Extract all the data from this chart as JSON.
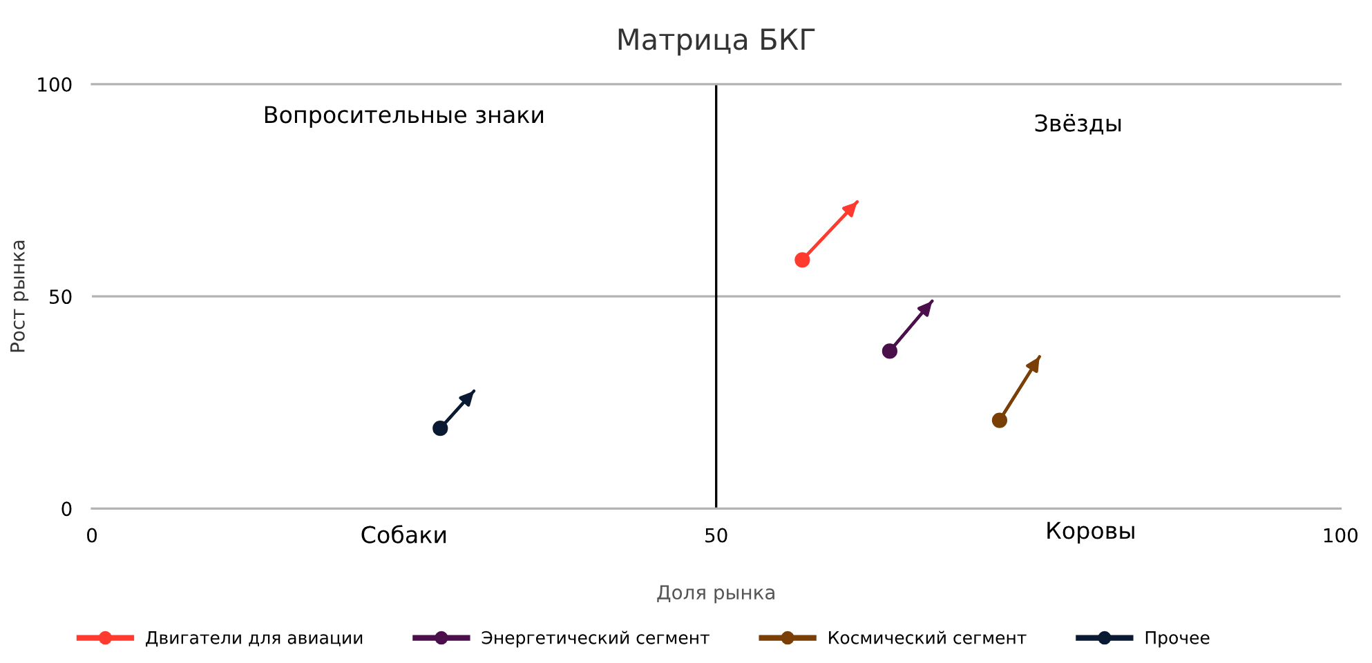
{
  "chart_data": {
    "type": "line",
    "title": "Матрица БКГ",
    "xlabel": "Доля рынка",
    "ylabel": "Рост рынка",
    "xlim": [
      0,
      100
    ],
    "xticks": [
      0,
      50,
      100
    ],
    "ylim": [
      0,
      100
    ],
    "yticks": [
      0,
      50,
      100
    ],
    "legend": "bottom",
    "marker": "circle",
    "series": [
      {
        "name": "Двигатели для авиации",
        "color": "#ff3b2f",
        "x": [
          56.9,
          61.3
        ],
        "values": [
          58.6,
          72.3
        ]
      },
      {
        "name": "Энергетический сегмент",
        "color": "#4b0f4b",
        "x": [
          63.9,
          67.3
        ],
        "values": [
          37.1,
          48.9
        ]
      },
      {
        "name": "Космический сегмент",
        "color": "#7a3f06",
        "x": [
          72.7,
          75.9
        ],
        "values": [
          20.8,
          35.8
        ]
      },
      {
        "name": "Прочее",
        "color": "#0b1a33",
        "x": [
          27.9,
          30.6
        ],
        "values": [
          18.9,
          27.7
        ]
      }
    ],
    "ref_lines": [
      {
        "axis": "x",
        "value": 50,
        "color": "#000000"
      },
      {
        "axis": "y",
        "value": 50,
        "color": "#b3b3b3"
      }
    ],
    "annotations": [
      "Вопросительные знаки",
      "Звёзды",
      "Собаки",
      "Коровы"
    ]
  }
}
